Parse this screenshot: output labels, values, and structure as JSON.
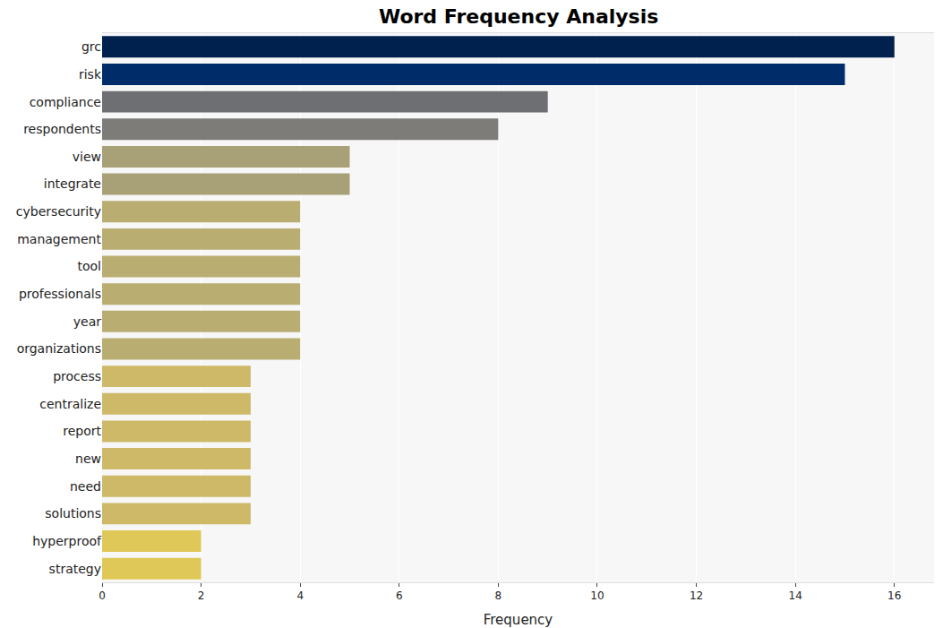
{
  "chart_data": {
    "type": "bar",
    "orientation": "horizontal",
    "title": "Word Frequency Analysis",
    "x_label": "Frequency",
    "categories": [
      "grc",
      "risk",
      "compliance",
      "respondents",
      "view",
      "integrate",
      "cybersecurity",
      "management",
      "tool",
      "professionals",
      "year",
      "organizations",
      "process",
      "centralize",
      "report",
      "new",
      "need",
      "solutions",
      "hyperproof",
      "strategy"
    ],
    "values": [
      16,
      15,
      9,
      8,
      5,
      5,
      4,
      4,
      4,
      4,
      4,
      4,
      3,
      3,
      3,
      3,
      3,
      3,
      2,
      2
    ],
    "colors": [
      "#00204e",
      "#002d69",
      "#6e6f73",
      "#7d7c79",
      "#a8a077",
      "#a8a077",
      "#b9ad72",
      "#b9ad72",
      "#b9ad72",
      "#b9ad72",
      "#b9ad72",
      "#b9ad72",
      "#cdb967",
      "#cdb967",
      "#cdb967",
      "#cdb967",
      "#cdb967",
      "#cdb967",
      "#dfc858",
      "#dfc858"
    ],
    "xlim": [
      0,
      16.8
    ],
    "xticks": [
      0,
      2,
      4,
      6,
      8,
      10,
      12,
      14,
      16
    ],
    "grid": true
  }
}
